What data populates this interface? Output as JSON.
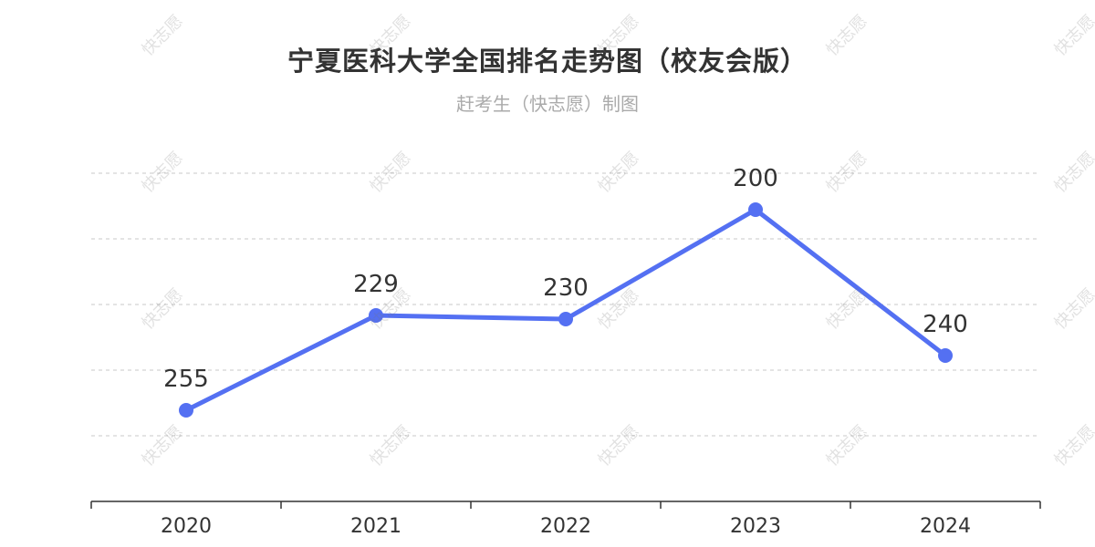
{
  "title": "宁夏医科大学全国排名走势图（校友会版）",
  "subtitle": "赶考生（快志愿）制图",
  "watermark": "快志愿",
  "colors": {
    "line": "#5470f2",
    "grid": "#c8c8c8",
    "axis": "#333333",
    "label": "#333333"
  },
  "chart_data": {
    "type": "line",
    "categories": [
      "2020",
      "2021",
      "2022",
      "2023",
      "2024"
    ],
    "values": [
      255,
      229,
      230,
      200,
      240
    ],
    "ylim": [
      190,
      280
    ],
    "y_inverted": true,
    "grid": true,
    "title": "宁夏医科大学全国排名走势图（校友会版）",
    "subtitle": "赶考生（快志愿）制图"
  }
}
